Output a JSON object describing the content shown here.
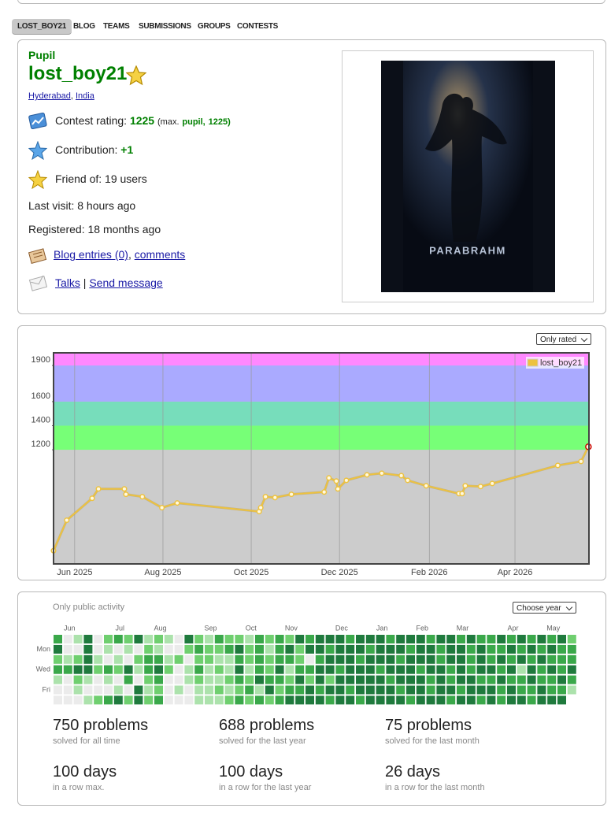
{
  "nav": {
    "tabs": [
      "LOST_BOY21",
      "BLOG",
      "TEAMS",
      "SUBMISSIONS",
      "GROUPS",
      "CONTESTS"
    ]
  },
  "profile": {
    "rank": "Pupil",
    "handle": "lost_boy21",
    "city": "Hyderabad",
    "location_separator": ",",
    "country": "India",
    "rating_label": "Contest rating:",
    "rating": 1225,
    "max_prefix": "(max.",
    "max_rank": "pupil,",
    "max_rating": "1225)",
    "contribution_label": "Contribution:",
    "contribution": "+1",
    "friends": "Friend of: 19 users",
    "last_visit": "Last visit: 8 hours ago",
    "registered": "Registered: 18 months ago",
    "blog": "Blog entries (0)",
    "blog_separator": ",",
    "comments": "comments",
    "talks": "Talks",
    "talks_separator": "|",
    "send_message": "Send message",
    "avatar_text": "PARABRAHM"
  },
  "chart_data": [
    {
      "type": "line",
      "filter": "Only rated",
      "x": [
        2025.374,
        2025.399,
        2025.447,
        2025.459,
        2025.508,
        2025.511,
        2025.542,
        2025.579,
        2025.608,
        2025.763,
        2025.766,
        2025.775,
        2025.793,
        2025.824,
        2025.886,
        2025.895,
        2025.909,
        2025.912,
        2025.928,
        2025.967,
        2025.995,
        2026.032,
        2026.044,
        2026.079,
        2026.141,
        2026.147,
        2026.153,
        2026.182,
        2026.204,
        2026.328,
        2026.372,
        2026.386
      ],
      "series": [
        {
          "name": "lost_boy21",
          "color": "#edc240",
          "values": [
            362,
            615,
            797,
            875,
            875,
            830,
            810,
            719,
            758,
            687,
            719,
            810,
            803,
            830,
            849,
            966,
            940,
            875,
            946,
            992,
            1005,
            985,
            946,
            901,
            836,
            836,
            901,
            895,
            920,
            1070,
            1103,
            1225
          ]
        }
      ],
      "highlight_color": "#cc0000",
      "xlim": [
        2025.374,
        2026.387
      ],
      "xticks": [
        {
          "value": 2025.414,
          "label": "Jun 2025"
        },
        {
          "value": 2025.581,
          "label": "Aug 2025"
        },
        {
          "value": 2025.748,
          "label": "Oct 2025"
        },
        {
          "value": 2025.915,
          "label": "Dec 2025"
        },
        {
          "value": 2026.085,
          "label": "Feb 2026"
        },
        {
          "value": 2026.247,
          "label": "Apr 2026"
        }
      ],
      "ylim": [
        252,
        2005
      ],
      "yticks": [
        1200,
        1400,
        1600,
        1900
      ],
      "background": "#cccccc",
      "bands": [
        {
          "min": 1200,
          "max": 1400,
          "color": "#77ff77"
        },
        {
          "min": 1400,
          "max": 1600,
          "color": "#77ddbb"
        },
        {
          "min": 1600,
          "max": 1900,
          "color": "#aaaaff"
        },
        {
          "min": 1900,
          "max": 2100,
          "color": "#ff88ff"
        }
      ],
      "grid": true,
      "legend": "top-right"
    },
    {
      "type": "heatmap",
      "note": "Only public activity",
      "filter": "Choose year",
      "colors": [
        "#ebebeb",
        "#ace2ac",
        "#6fcf6f",
        "#3aa84a",
        "#1f7a3d"
      ],
      "day_labels": [
        null,
        "Mon",
        null,
        "Wed",
        null,
        "Fri",
        null
      ],
      "week_labels": [
        null,
        "Jun",
        null,
        null,
        null,
        null,
        "Jul",
        null,
        null,
        null,
        "Aug",
        null,
        null,
        null,
        null,
        "Sep",
        null,
        null,
        null,
        "Oct",
        null,
        null,
        null,
        "Nov",
        null,
        null,
        null,
        null,
        "Dec",
        null,
        null,
        null,
        "Jan",
        null,
        null,
        null,
        "Feb",
        null,
        null,
        null,
        "Mar",
        null,
        null,
        null,
        null,
        "Apr",
        null,
        null,
        null,
        "May",
        null,
        null
      ],
      "weeks": [
        [
          3,
          4,
          2,
          3,
          1,
          0,
          0
        ],
        [
          0,
          0,
          1,
          3,
          0,
          0,
          0
        ],
        [
          1,
          0,
          2,
          4,
          2,
          1,
          0
        ],
        [
          4,
          4,
          4,
          4,
          1,
          0,
          1
        ],
        [
          0,
          0,
          1,
          2,
          0,
          0,
          2
        ],
        [
          2,
          1,
          0,
          3,
          1,
          0,
          3
        ],
        [
          3,
          0,
          1,
          2,
          0,
          1,
          4
        ],
        [
          2,
          1,
          0,
          4,
          3,
          0,
          2
        ],
        [
          4,
          0,
          2,
          1,
          0,
          4,
          4
        ],
        [
          1,
          2,
          3,
          3,
          2,
          1,
          2
        ],
        [
          2,
          1,
          3,
          4,
          3,
          2,
          3
        ],
        [
          1,
          0,
          1,
          2,
          0,
          0,
          0
        ],
        [
          0,
          0,
          2,
          0,
          0,
          1,
          0
        ],
        [
          4,
          2,
          0,
          1,
          1,
          0,
          0
        ],
        [
          2,
          3,
          2,
          3,
          2,
          1,
          1
        ],
        [
          1,
          2,
          2,
          1,
          1,
          1,
          1
        ],
        [
          3,
          2,
          1,
          2,
          1,
          2,
          1
        ],
        [
          2,
          3,
          1,
          1,
          2,
          1,
          2
        ],
        [
          2,
          4,
          3,
          4,
          3,
          2,
          3
        ],
        [
          1,
          2,
          2,
          1,
          2,
          3,
          2
        ],
        [
          3,
          3,
          3,
          3,
          4,
          1,
          3
        ],
        [
          2,
          1,
          2,
          2,
          3,
          4,
          2
        ],
        [
          3,
          3,
          3,
          4,
          3,
          2,
          3
        ],
        [
          2,
          4,
          3,
          1,
          2,
          3,
          4
        ],
        [
          4,
          2,
          2,
          3,
          4,
          3,
          4
        ],
        [
          3,
          4,
          0,
          3,
          2,
          4,
          4
        ],
        [
          4,
          4,
          3,
          4,
          4,
          3,
          4
        ],
        [
          4,
          3,
          4,
          4,
          2,
          4,
          3
        ],
        [
          4,
          4,
          4,
          3,
          4,
          4,
          4
        ],
        [
          3,
          4,
          4,
          4,
          4,
          3,
          4
        ],
        [
          4,
          4,
          3,
          4,
          4,
          4,
          3
        ],
        [
          4,
          3,
          4,
          4,
          4,
          4,
          4
        ],
        [
          4,
          4,
          4,
          3,
          4,
          4,
          4
        ],
        [
          3,
          4,
          4,
          4,
          3,
          4,
          4
        ],
        [
          4,
          4,
          3,
          4,
          4,
          3,
          4
        ],
        [
          4,
          3,
          4,
          4,
          4,
          4,
          3
        ],
        [
          4,
          4,
          4,
          3,
          4,
          4,
          4
        ],
        [
          3,
          4,
          4,
          4,
          3,
          3,
          4
        ],
        [
          4,
          3,
          3,
          4,
          4,
          4,
          4
        ],
        [
          4,
          4,
          4,
          3,
          3,
          4,
          3
        ],
        [
          3,
          4,
          4,
          4,
          4,
          3,
          4
        ],
        [
          4,
          3,
          3,
          3,
          4,
          4,
          4
        ],
        [
          3,
          4,
          4,
          4,
          3,
          4,
          3
        ],
        [
          3,
          3,
          3,
          4,
          3,
          4,
          4
        ],
        [
          4,
          3,
          4,
          3,
          4,
          3,
          3
        ],
        [
          3,
          4,
          3,
          4,
          3,
          4,
          4
        ],
        [
          4,
          3,
          4,
          1,
          3,
          3,
          4
        ],
        [
          3,
          4,
          3,
          4,
          4,
          3,
          3
        ],
        [
          4,
          3,
          4,
          3,
          3,
          4,
          4
        ],
        [
          3,
          4,
          3,
          4,
          3,
          3,
          4
        ],
        [
          4,
          3,
          3,
          3,
          4,
          3,
          4
        ],
        [
          2,
          3,
          3,
          4,
          3,
          1,
          null
        ]
      ]
    }
  ],
  "stats": [
    {
      "value": "750 problems",
      "caption": "solved for all time"
    },
    {
      "value": "688 problems",
      "caption": "solved for the last year"
    },
    {
      "value": "75 problems",
      "caption": "solved for the last month"
    },
    {
      "value": "100 days",
      "caption": "in a row max."
    },
    {
      "value": "100 days",
      "caption": "in a row for the last year"
    },
    {
      "value": "26 days",
      "caption": "in a row for the last month"
    }
  ]
}
